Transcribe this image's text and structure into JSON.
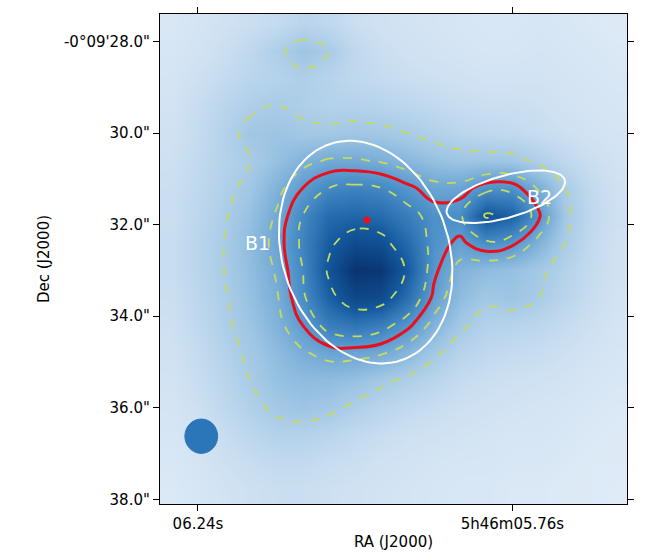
{
  "chart_data": {
    "type": "heatmap",
    "x_label": "RA (J2000)",
    "y_label": "Dec (J2000)",
    "xlim": [
      6.298,
      5.585
    ],
    "ylim": [
      38.1,
      27.4
    ],
    "xticks": [
      {
        "value": 6.24,
        "label": "06.24s"
      },
      {
        "value": 5.76,
        "label": "5h46m05.76s"
      }
    ],
    "yticks": [
      {
        "value": 28,
        "label": "-0°09'28.0\""
      },
      {
        "value": 30,
        "label": "30.0\""
      },
      {
        "value": 32,
        "label": "32.0\""
      },
      {
        "value": 34,
        "label": "34.0\""
      },
      {
        "value": 36,
        "label": "36.0\""
      },
      {
        "value": 38,
        "label": "38.0\""
      }
    ],
    "grid": false,
    "x": [
      6.28,
      6.24,
      6.2,
      6.16,
      6.12,
      6.08,
      6.04,
      6.0,
      5.96,
      5.92,
      5.88,
      5.84,
      5.8,
      5.76,
      5.72,
      5.68,
      5.64,
      5.6
    ],
    "y": [
      27.6,
      28.2,
      28.8,
      29.4,
      30.0,
      30.6,
      31.2,
      31.8,
      32.4,
      33.0,
      33.6,
      34.2,
      34.8,
      35.4,
      36.0,
      36.6,
      37.2,
      37.8
    ],
    "z": [
      [
        1.2,
        1.4,
        1.6,
        1.8,
        2.0,
        2.4,
        2.2,
        1.8,
        1.6,
        1.5,
        1.4,
        1.3,
        1.2,
        1.2,
        1.3,
        1.2,
        1.1,
        1.0
      ],
      [
        1.3,
        1.5,
        1.8,
        2.2,
        2.8,
        3.4,
        3.0,
        2.2,
        1.8,
        1.6,
        1.5,
        1.4,
        1.3,
        1.3,
        1.4,
        1.3,
        1.2,
        1.1
      ],
      [
        1.4,
        1.7,
        2.0,
        2.4,
        2.6,
        2.8,
        2.5,
        2.2,
        2.0,
        1.8,
        1.7,
        1.6,
        1.5,
        1.5,
        1.5,
        1.4,
        1.3,
        1.2
      ],
      [
        1.5,
        1.9,
        2.4,
        2.8,
        3.0,
        2.8,
        2.6,
        2.6,
        2.5,
        2.3,
        2.1,
        1.9,
        1.8,
        1.8,
        1.7,
        1.5,
        1.4,
        1.3
      ],
      [
        1.6,
        2.0,
        2.6,
        3.3,
        3.4,
        3.2,
        3.2,
        3.3,
        3.2,
        3.0,
        2.7,
        2.4,
        2.2,
        2.1,
        1.9,
        1.7,
        1.5,
        1.4
      ],
      [
        1.7,
        2.1,
        2.6,
        3.0,
        3.6,
        4.2,
        4.6,
        4.6,
        4.4,
        4.0,
        3.6,
        3.4,
        3.4,
        3.3,
        2.8,
        2.2,
        1.8,
        1.5
      ],
      [
        1.8,
        2.2,
        2.7,
        3.3,
        4.2,
        5.2,
        6.0,
        6.2,
        6.0,
        5.4,
        4.8,
        4.8,
        5.6,
        5.6,
        4.4,
        3.0,
        2.1,
        1.6
      ],
      [
        1.8,
        2.3,
        2.9,
        3.6,
        4.6,
        6.0,
        7.2,
        7.4,
        7.2,
        6.4,
        5.6,
        5.8,
        8.2,
        7.6,
        5.4,
        3.2,
        2.2,
        1.7
      ],
      [
        1.9,
        2.4,
        3.0,
        3.8,
        4.8,
        6.2,
        7.8,
        8.6,
        8.4,
        7.2,
        5.6,
        5.0,
        5.8,
        5.4,
        4.2,
        3.0,
        2.1,
        1.6
      ],
      [
        1.9,
        2.4,
        3.0,
        3.7,
        4.6,
        6.0,
        8.2,
        9.8,
        9.6,
        7.8,
        5.4,
        4.2,
        3.8,
        3.6,
        3.2,
        2.6,
        2.0,
        1.6
      ],
      [
        1.8,
        2.3,
        2.9,
        3.6,
        4.4,
        5.8,
        7.6,
        8.8,
        8.6,
        7.0,
        5.0,
        3.8,
        3.2,
        3.4,
        3.0,
        2.4,
        1.9,
        1.5
      ],
      [
        1.7,
        2.2,
        2.8,
        3.4,
        4.2,
        5.2,
        6.4,
        6.8,
        6.4,
        5.4,
        4.2,
        3.2,
        2.6,
        2.5,
        2.3,
        2.0,
        1.7,
        1.4
      ],
      [
        1.6,
        2.0,
        2.6,
        3.2,
        3.8,
        4.4,
        4.8,
        4.8,
        4.6,
        4.0,
        3.2,
        2.5,
        2.2,
        2.0,
        1.9,
        1.7,
        1.5,
        1.3
      ],
      [
        1.5,
        1.9,
        2.4,
        3.0,
        3.6,
        3.8,
        3.8,
        3.6,
        3.2,
        2.8,
        2.4,
        2.0,
        1.8,
        1.7,
        1.6,
        1.5,
        1.3,
        1.2
      ],
      [
        1.4,
        1.7,
        2.2,
        2.7,
        3.2,
        3.4,
        3.2,
        2.8,
        2.4,
        2.1,
        1.9,
        1.7,
        1.6,
        1.5,
        1.4,
        1.3,
        1.2,
        1.1
      ],
      [
        1.3,
        1.6,
        1.9,
        2.3,
        2.6,
        2.6,
        2.4,
        2.1,
        1.9,
        1.7,
        1.6,
        1.5,
        1.4,
        1.3,
        1.3,
        1.2,
        1.1,
        1.0
      ],
      [
        1.2,
        1.4,
        1.7,
        1.9,
        2.1,
        2.1,
        1.9,
        1.8,
        1.6,
        1.5,
        1.4,
        1.3,
        1.3,
        1.2,
        1.2,
        1.1,
        1.0,
        1.0
      ],
      [
        1.1,
        1.3,
        1.5,
        1.7,
        1.8,
        1.8,
        1.7,
        1.6,
        1.5,
        1.4,
        1.3,
        1.2,
        1.2,
        1.1,
        1.1,
        1.0,
        1.0,
        0.9
      ]
    ],
    "zlim": [
      0.5,
      10
    ],
    "contours": {
      "levels": [
        3,
        4.5,
        6,
        8
      ],
      "color": "#c6da5c",
      "line_style": "dash"
    },
    "red_contour": {
      "level": 5.2,
      "color": "#e8101c",
      "line_style": "solid"
    },
    "ellipses": {
      "color": "#ffffff",
      "items": [
        {
          "label": "B1",
          "x": 5.984,
          "y": 32.6,
          "major": 2.5,
          "minor": 1.9,
          "pa": 21,
          "label_x": 6.149,
          "label_y": 32.41
        },
        {
          "label": "B2",
          "x": 5.77,
          "y": 31.39,
          "major": 1.4,
          "minor": 0.46,
          "pa": 105,
          "label_x": 5.719,
          "label_y": 31.39
        }
      ]
    },
    "peak": {
      "x": 5.982,
      "y": 31.9,
      "color": "#e8101c"
    },
    "beam": {
      "x": 6.235,
      "y": 36.62,
      "diameter": 0.75,
      "color": "#2b76b9"
    }
  }
}
